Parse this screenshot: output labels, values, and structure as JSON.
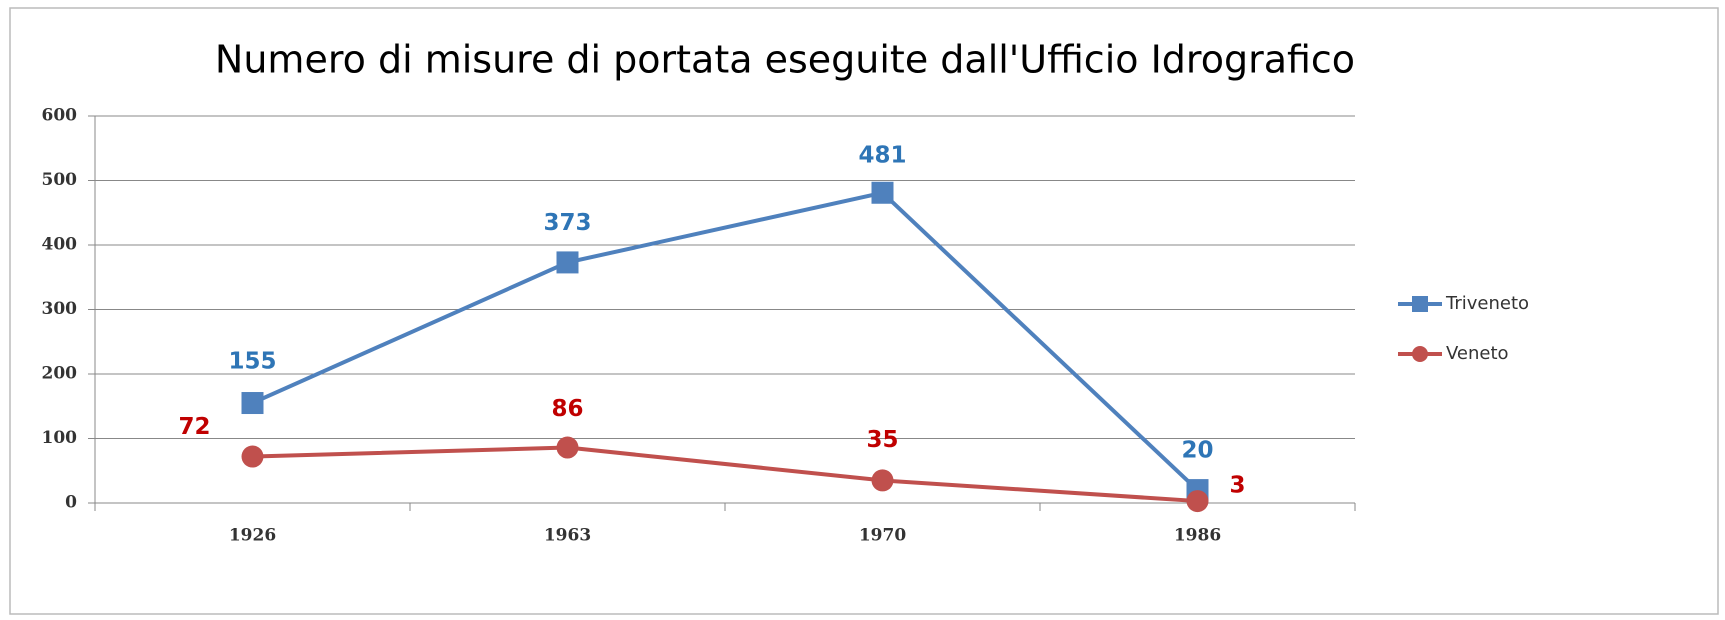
{
  "chart_data": {
    "type": "line",
    "title": "Numero di misure di portata eseguite dall'Ufficio Idrografico",
    "categories": [
      "1926",
      "1963",
      "1970",
      "1986"
    ],
    "series": [
      {
        "name": "Triveneto",
        "color": "#4f81bd",
        "marker": "square",
        "values": [
          155,
          373,
          481,
          20
        ]
      },
      {
        "name": "Veneto",
        "color": "#c0504d",
        "marker": "circle",
        "values": [
          72,
          86,
          35,
          3
        ]
      }
    ],
    "ylim": [
      0,
      600
    ],
    "yticks": [
      0,
      100,
      200,
      300,
      400,
      500,
      600
    ],
    "grid": true,
    "legend": "right"
  }
}
